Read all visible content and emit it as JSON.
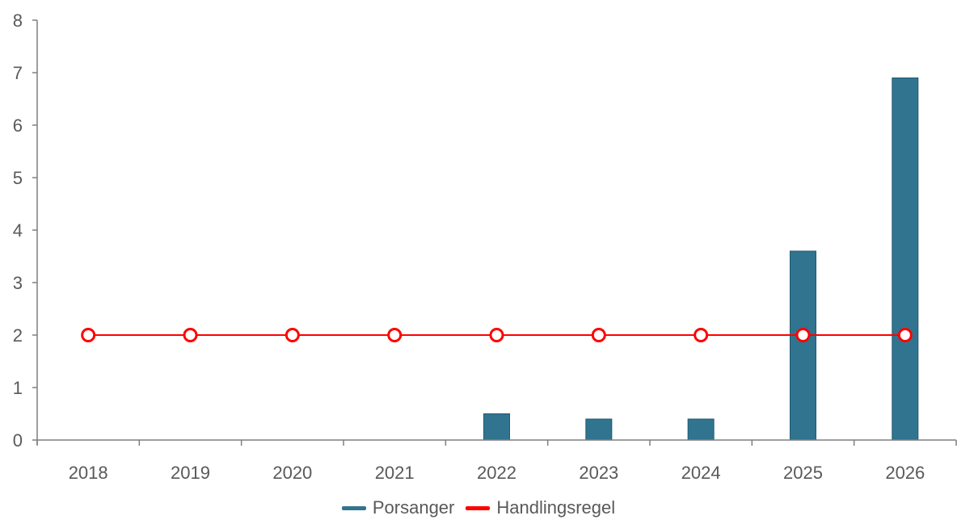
{
  "chart_data": {
    "type": "bar",
    "categories": [
      "2018",
      "2019",
      "2020",
      "2021",
      "2022",
      "2023",
      "2024",
      "2025",
      "2026"
    ],
    "series": [
      {
        "name": "Porsanger",
        "type": "bar",
        "color": "#31748f",
        "values": [
          0,
          0,
          0,
          0,
          0.5,
          0.4,
          0.4,
          3.6,
          6.9
        ]
      },
      {
        "name": "Handlingsregel",
        "type": "line",
        "color": "#ff0000",
        "marker": "hollow-circle",
        "values": [
          2,
          2,
          2,
          2,
          2,
          2,
          2,
          2,
          2
        ]
      }
    ],
    "yticks": [
      "0",
      "1",
      "2",
      "3",
      "4",
      "5",
      "6",
      "7",
      "8"
    ],
    "ylim": [
      0,
      8
    ],
    "title": "",
    "xlabel": "",
    "ylabel": "",
    "grid": false,
    "legend_position": "bottom"
  }
}
